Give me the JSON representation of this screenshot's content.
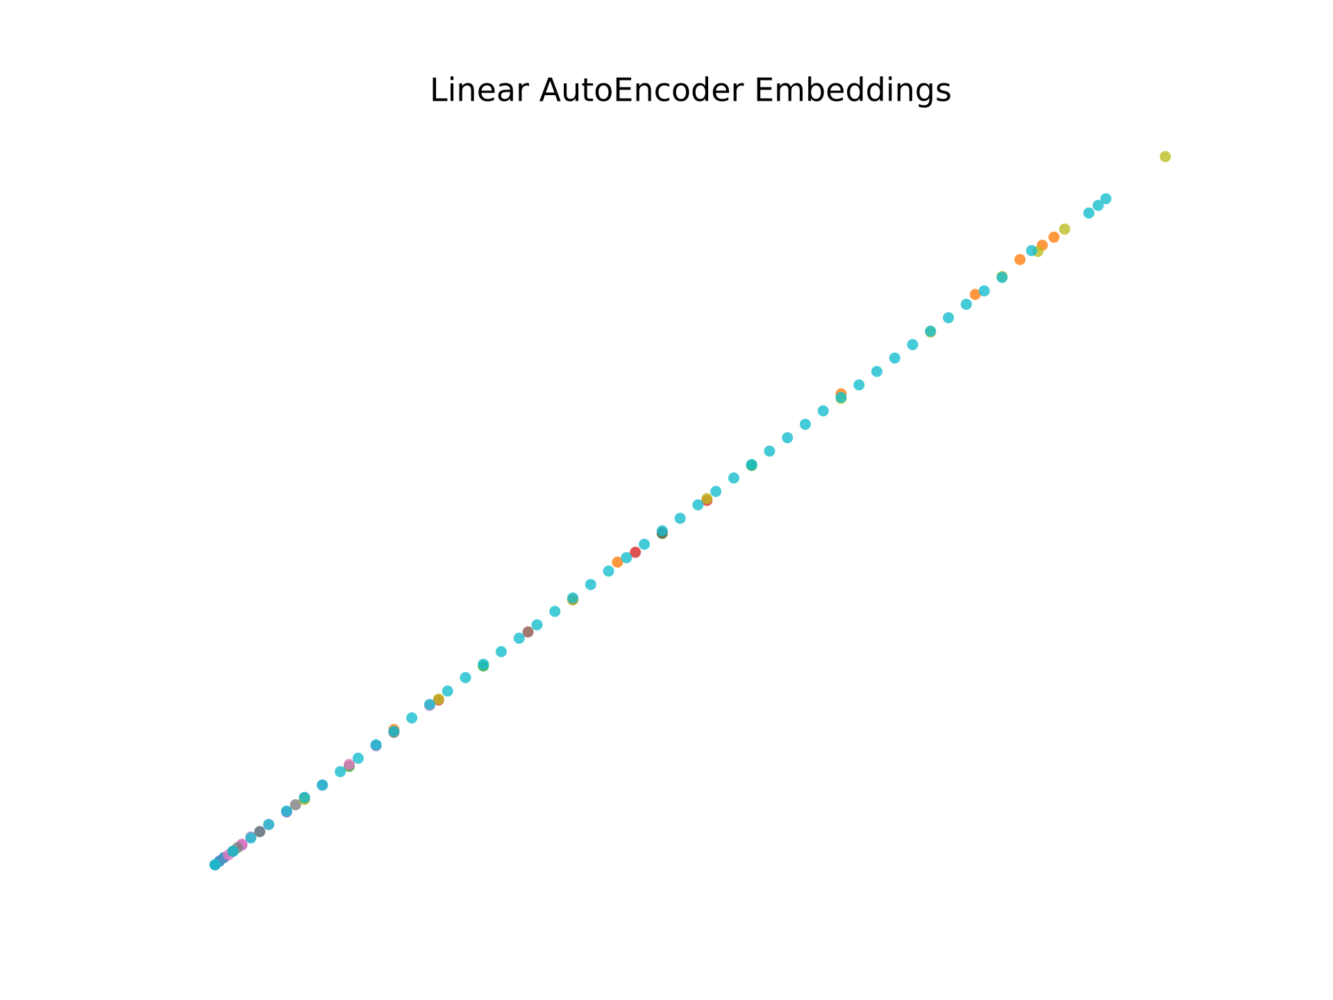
{
  "chart_data": {
    "type": "scatter",
    "title": "Linear AutoEncoder Embeddings",
    "xlim": [
      -2,
      108
    ],
    "ylim": [
      -2,
      81
    ],
    "opacity": 0.8,
    "series": [
      {
        "color": "#1f77b4",
        "x": [
          0,
          0.5,
          1,
          2,
          5,
          10
        ],
        "values": [
          0,
          0.4,
          0.8,
          1.5,
          3.7,
          7.5
        ]
      },
      {
        "color": "#ff7f0e",
        "x": [
          20,
          45,
          70,
          85,
          90,
          92.5,
          93.8
        ],
        "values": [
          15.1,
          33.8,
          52.6,
          63.7,
          67.6,
          69.2,
          70.1
        ]
      },
      {
        "color": "#2ca02c",
        "x": [
          15,
          30,
          50,
          60
        ],
        "values": [
          11,
          22.2,
          37,
          44.6
        ]
      },
      {
        "color": "#d62728",
        "x": [
          25,
          40,
          47,
          55
        ],
        "values": [
          18.4,
          29.6,
          34.9,
          40.7
        ]
      },
      {
        "color": "#9467bd",
        "x": [
          3,
          8,
          12,
          18
        ],
        "values": [
          2.2,
          5.9,
          8.9,
          13.3
        ]
      },
      {
        "color": "#8c564b",
        "x": [
          10,
          20,
          35,
          50
        ],
        "values": [
          7.4,
          14.8,
          26,
          37.1
        ]
      },
      {
        "color": "#e377c2",
        "x": [
          1.5,
          3,
          4,
          6,
          15,
          24
        ],
        "values": [
          1.1,
          2.3,
          3.1,
          4.5,
          11.2,
          17.8
        ]
      },
      {
        "color": "#7f7f7f",
        "x": [
          2,
          2.5,
          5,
          9
        ],
        "values": [
          1.5,
          1.9,
          3.7,
          6.7
        ]
      },
      {
        "color": "#bcbd22",
        "x": [
          10,
          25,
          40,
          55,
          70,
          80,
          88,
          92,
          95,
          106.25
        ],
        "values": [
          7.3,
          18.5,
          29.6,
          40.9,
          52.1,
          59.5,
          65.7,
          68.5,
          71,
          79.1
        ]
      },
      {
        "color": "#17becf",
        "x": [
          0,
          2,
          4,
          6,
          8,
          10,
          12,
          14,
          16,
          18,
          20,
          22,
          24,
          26,
          28,
          30,
          32,
          34,
          36,
          38,
          40,
          42,
          44,
          46,
          48,
          50,
          52,
          54,
          56,
          58,
          60,
          62,
          64,
          66,
          68,
          70,
          72,
          74,
          76,
          78,
          80,
          82,
          84,
          86,
          88,
          91.3,
          97.7,
          98.75,
          99.6
        ],
        "values": [
          0,
          1.5,
          3,
          4.5,
          6,
          7.5,
          8.9,
          10.4,
          11.9,
          13.4,
          14.9,
          16.4,
          17.9,
          19.4,
          20.9,
          22.4,
          23.8,
          25.3,
          26.8,
          28.3,
          29.8,
          31.3,
          32.8,
          34.3,
          35.8,
          37.3,
          38.7,
          40.2,
          41.7,
          43.2,
          44.7,
          46.2,
          47.7,
          49.2,
          50.7,
          52.2,
          53.6,
          55.1,
          56.6,
          58.1,
          59.6,
          61.1,
          62.6,
          64.1,
          65.6,
          68.6,
          72.8,
          73.65,
          74.4
        ]
      }
    ]
  }
}
